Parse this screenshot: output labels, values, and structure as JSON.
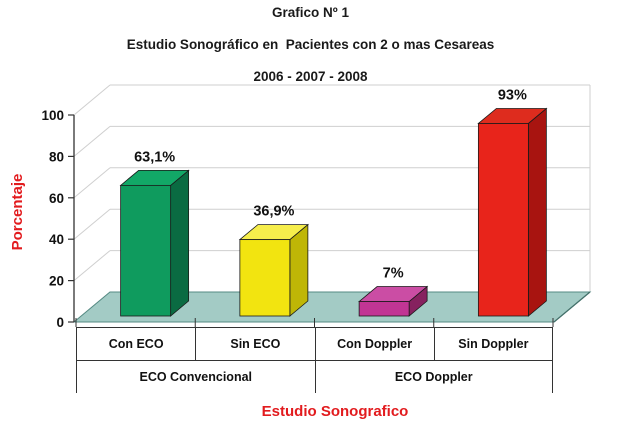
{
  "title": {
    "line1": "Grafico Nº 1",
    "line2": "Estudio Sonográfico en  Pacientes con 2 o mas Cesareas",
    "line3": "2006 - 2007 - 2008"
  },
  "y_axis": {
    "label": "Porcentaje",
    "ticks": [
      0,
      20,
      40,
      60,
      80,
      100
    ],
    "max": 100
  },
  "x_axis": {
    "label": "Estudio Sonografico"
  },
  "chart_data": {
    "type": "bar",
    "style": "3d",
    "title": "Grafico Nº 1 — Estudio Sonográfico en Pacientes con 2 o mas Cesareas 2006 - 2007 - 2008",
    "xlabel": "Estudio Sonografico",
    "ylabel": "Porcentaje",
    "ylim": [
      0,
      100
    ],
    "grid": true,
    "legend": false,
    "categories": [
      "Con ECO",
      "Sin ECO",
      "Con Doppler",
      "Sin Doppler"
    ],
    "groups": [
      {
        "label": "ECO Convencional",
        "span": 2
      },
      {
        "label": "ECO Doppler",
        "span": 2
      }
    ],
    "values": [
      63.1,
      36.9,
      7,
      93
    ],
    "value_labels": [
      "63,1%",
      "36,9%",
      "7%",
      "93%"
    ],
    "bar_colors": [
      {
        "front": "#0F9B5E",
        "top": "#12A867",
        "side": "#0A6B42"
      },
      {
        "front": "#F2E410",
        "top": "#F6EE4C",
        "side": "#BFB606"
      },
      {
        "front": "#C13594",
        "top": "#CB4DA4",
        "side": "#86215F"
      },
      {
        "front": "#E8241B",
        "top": "#DE2C1E",
        "side": "#A81410"
      }
    ]
  },
  "colors": {
    "accent_red": "#E21B1E",
    "floor": "#A3CBC5",
    "floor_edge": "#558B84",
    "grid": "#CFCFCF",
    "axis": "#333333",
    "label_text": "#111111"
  }
}
